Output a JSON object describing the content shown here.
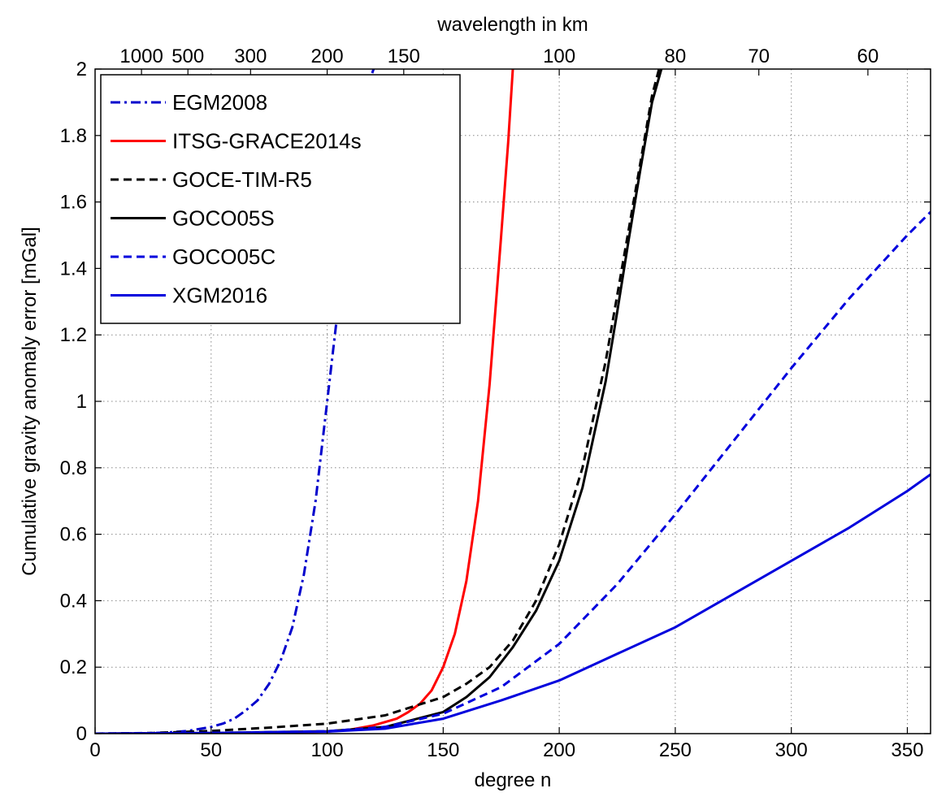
{
  "chart_data": {
    "type": "line",
    "title": "",
    "xlabel": "degree n",
    "ylabel": "Cumulative gravity anomaly error [mGal]",
    "top_axis_label": "wavelength in km",
    "xlim": [
      0,
      360
    ],
    "ylim": [
      0,
      2
    ],
    "grid": true,
    "legend_position": "top-left",
    "x_ticks": [
      0,
      50,
      100,
      150,
      200,
      250,
      300,
      350
    ],
    "x_tick_labels": [
      "0",
      "50",
      "100",
      "150",
      "200",
      "250",
      "300",
      "350"
    ],
    "y_ticks": [
      0,
      0.2,
      0.4,
      0.6,
      0.8,
      1.0,
      1.2,
      1.4,
      1.6,
      1.8,
      2.0
    ],
    "y_tick_labels": [
      "0",
      "0.2",
      "0.4",
      "0.6",
      "0.8",
      "1",
      "1.2",
      "1.4",
      "1.6",
      "1.8",
      "2"
    ],
    "top_ticks": [
      {
        "degree": 20,
        "label": "1000"
      },
      {
        "degree": 40,
        "label": "500"
      },
      {
        "degree": 67,
        "label": "300"
      },
      {
        "degree": 100,
        "label": "200"
      },
      {
        "degree": 133,
        "label": "150"
      },
      {
        "degree": 200,
        "label": "100"
      },
      {
        "degree": 250,
        "label": "80"
      },
      {
        "degree": 286,
        "label": "70"
      },
      {
        "degree": 333,
        "label": "60"
      }
    ],
    "series": [
      {
        "name": "EGM2008",
        "color": "#0000cc",
        "dash": "dashdot",
        "x": [
          0,
          20,
          30,
          40,
          50,
          55,
          60,
          65,
          70,
          75,
          80,
          85,
          90,
          95,
          100,
          105,
          110,
          115,
          118,
          120
        ],
        "y": [
          0,
          0.001,
          0.003,
          0.008,
          0.02,
          0.03,
          0.045,
          0.07,
          0.1,
          0.15,
          0.22,
          0.32,
          0.48,
          0.7,
          1.0,
          1.3,
          1.58,
          1.85,
          1.96,
          2.0
        ]
      },
      {
        "name": "ITSG-GRACE2014s",
        "color": "#ff0000",
        "dash": "solid",
        "x": [
          0,
          50,
          100,
          110,
          120,
          130,
          135,
          140,
          145,
          150,
          155,
          160,
          165,
          170,
          173,
          175,
          178,
          180
        ],
        "y": [
          0,
          0.001,
          0.006,
          0.012,
          0.025,
          0.045,
          0.065,
          0.09,
          0.13,
          0.2,
          0.3,
          0.46,
          0.7,
          1.05,
          1.32,
          1.5,
          1.78,
          2.0
        ]
      },
      {
        "name": "GOCE-TIM-R5",
        "color": "#000000",
        "dash": "dashed",
        "x": [
          0,
          25,
          50,
          75,
          100,
          125,
          150,
          160,
          170,
          180,
          190,
          200,
          210,
          220,
          225,
          230,
          235,
          240,
          243
        ],
        "y": [
          0,
          0.002,
          0.008,
          0.018,
          0.03,
          0.055,
          0.11,
          0.15,
          0.2,
          0.28,
          0.4,
          0.57,
          0.8,
          1.12,
          1.32,
          1.52,
          1.72,
          1.92,
          2.0
        ]
      },
      {
        "name": "GOCO05S",
        "color": "#000000",
        "dash": "solid",
        "x": [
          0,
          50,
          100,
          125,
          150,
          160,
          170,
          180,
          190,
          200,
          210,
          220,
          225,
          230,
          235,
          240,
          244
        ],
        "y": [
          0,
          0.002,
          0.007,
          0.02,
          0.065,
          0.11,
          0.17,
          0.26,
          0.37,
          0.52,
          0.74,
          1.06,
          1.27,
          1.49,
          1.7,
          1.9,
          2.0
        ]
      },
      {
        "name": "GOCO05C",
        "color": "#0000dd",
        "dash": "dashed",
        "x": [
          0,
          50,
          100,
          125,
          150,
          175,
          200,
          225,
          250,
          275,
          300,
          325,
          350,
          360
        ],
        "y": [
          0,
          0.002,
          0.007,
          0.02,
          0.06,
          0.14,
          0.27,
          0.45,
          0.66,
          0.88,
          1.1,
          1.31,
          1.5,
          1.57
        ]
      },
      {
        "name": "XGM2016",
        "color": "#0000dd",
        "dash": "solid",
        "x": [
          0,
          50,
          100,
          125,
          150,
          175,
          200,
          225,
          250,
          275,
          300,
          325,
          350,
          360
        ],
        "y": [
          0,
          0.002,
          0.006,
          0.015,
          0.045,
          0.1,
          0.16,
          0.24,
          0.32,
          0.42,
          0.52,
          0.62,
          0.73,
          0.78
        ]
      }
    ]
  }
}
